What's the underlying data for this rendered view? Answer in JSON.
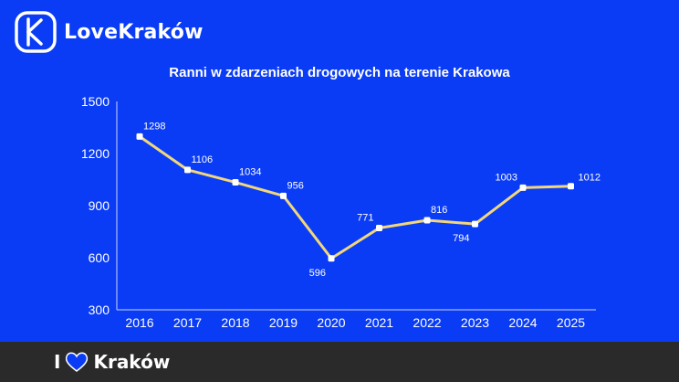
{
  "brand": {
    "name": "LoveKraków",
    "footer_prefix": "I",
    "footer_city": "Kraków"
  },
  "colors": {
    "background": "#0a3cf5",
    "line": "#f2d77a",
    "marker": "#ffffff",
    "footer": "#2a2a2a",
    "heart": "#0a3cf5"
  },
  "chart_data": {
    "type": "line",
    "title": "Ranni w zdarzeniach drogowych na terenie Krakowa",
    "xlabel": "",
    "ylabel": "",
    "x": [
      "2016",
      "2017",
      "2018",
      "2019",
      "2020",
      "2021",
      "2022",
      "2023",
      "2024",
      "2025"
    ],
    "series": [
      {
        "values": [
          1298,
          1106,
          1034,
          956,
          596,
          771,
          816,
          794,
          1003,
          1012
        ]
      }
    ],
    "value_labels": [
      "1298",
      "1106",
      "1034",
      "956",
      "596",
      "771",
      "816",
      "794",
      "1003",
      "1012"
    ],
    "ylim": [
      300,
      1500
    ],
    "yticks": [
      300,
      600,
      900,
      1200,
      1500
    ],
    "ytick_labels": [
      "300",
      "600",
      "900",
      "1200",
      "1500"
    ],
    "grid": false,
    "legend": "none"
  }
}
